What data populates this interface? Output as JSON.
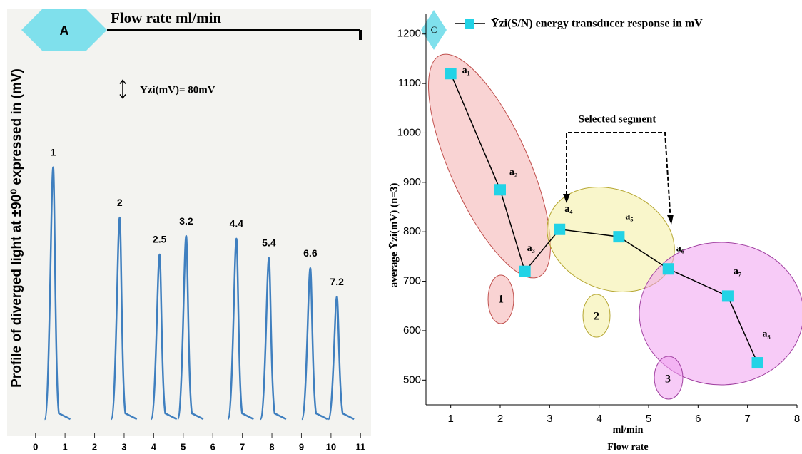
{
  "chart_data": [
    {
      "type": "peaks",
      "badge": "A",
      "title": "Flow rate ml/min",
      "y_label": "Profile of diverged light at ±90⁰ expressed in (mV)",
      "annotation": "Yzi(mV)= 80mV",
      "scale_bar": 80,
      "categories": [
        "1",
        "2",
        "2.5",
        "3.2",
        "4.4",
        "5.4",
        "6.6",
        "7.2"
      ],
      "x": [
        0.6,
        2.85,
        4.2,
        5.1,
        6.8,
        7.9,
        9.3,
        10.2
      ],
      "values": [
        1130,
        905,
        739,
        822,
        810,
        723,
        678,
        550
      ],
      "color": "#3f7fbf",
      "xlim": [
        -0.5,
        11.5
      ],
      "xticks": [
        0,
        1,
        2,
        3,
        4,
        5,
        6,
        7,
        8,
        9,
        10,
        11
      ],
      "ylim": [
        0,
        1830
      ]
    },
    {
      "type": "line",
      "badge": "C",
      "x_label": "ml/min",
      "x_title": "Flow rate",
      "y_label": "average Ȳzi(mV) (n=3)",
      "annotation": "Selected segment",
      "cluster_labels": [
        "1",
        "2",
        "3"
      ],
      "x": [
        1,
        2,
        2.5,
        3.2,
        4.4,
        5.4,
        6.6,
        7.2
      ],
      "series": [
        {
          "name": "Ȳzi(S/N) energy transducer response in mV",
          "color": "#22d3e6",
          "values": [
            1120,
            885,
            720,
            805,
            790,
            725,
            670,
            535
          ],
          "point_labels": [
            "a₁",
            "a₂",
            "a₃",
            "a₄",
            "a₅",
            "a₆",
            "a₇",
            "a₈"
          ]
        }
      ],
      "xlim": [
        0.5,
        8
      ],
      "xticks": [
        1,
        2,
        3,
        4,
        5,
        6,
        7,
        8
      ],
      "ylim": [
        450,
        1240
      ],
      "yticks": [
        500,
        600,
        700,
        800,
        900,
        1000,
        1100,
        1200
      ]
    }
  ]
}
